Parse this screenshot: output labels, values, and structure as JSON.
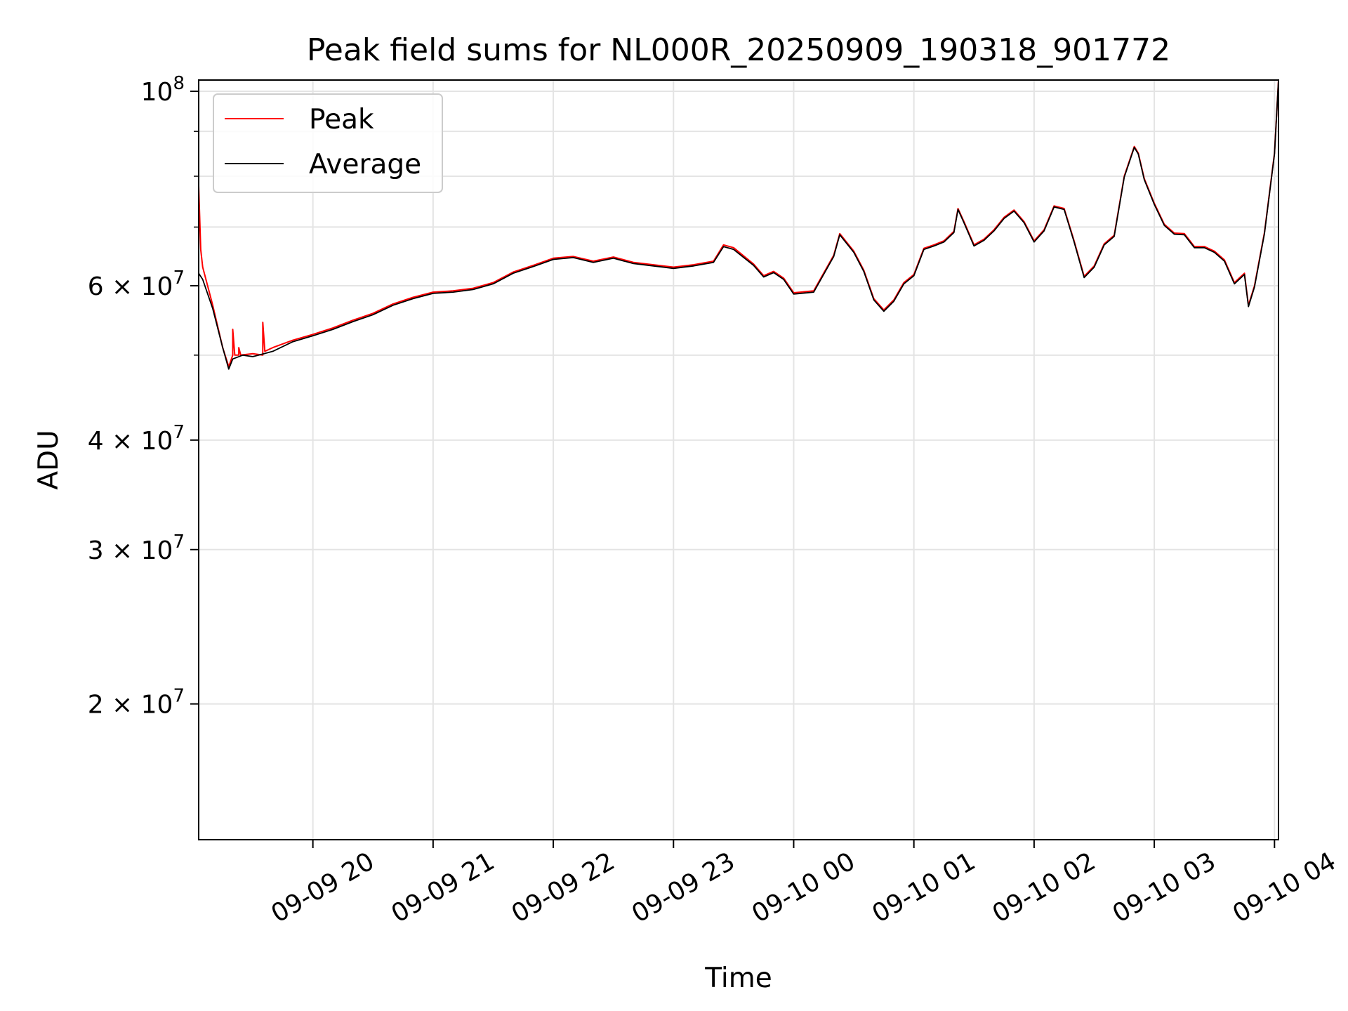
{
  "chart_data": {
    "type": "line",
    "title": "Peak field sums for NL000R_20250909_190318_901772",
    "xlabel": "Time",
    "ylabel": "ADU",
    "y_scale": "log",
    "ylim": [
      14000000,
      103000000
    ],
    "xlim": [
      "2025-09-09 19:03",
      "2025-09-10 04:02"
    ],
    "grid": true,
    "legend_position": "top-left",
    "x_ticks": [
      {
        "value": "2025-09-09 20:00",
        "label": "09-09 20"
      },
      {
        "value": "2025-09-09 21:00",
        "label": "09-09 21"
      },
      {
        "value": "2025-09-09 22:00",
        "label": "09-09 22"
      },
      {
        "value": "2025-09-09 23:00",
        "label": "09-09 23"
      },
      {
        "value": "2025-09-10 00:00",
        "label": "09-10 00"
      },
      {
        "value": "2025-09-10 01:00",
        "label": "09-10 01"
      },
      {
        "value": "2025-09-10 02:00",
        "label": "09-10 02"
      },
      {
        "value": "2025-09-10 03:00",
        "label": "09-10 03"
      },
      {
        "value": "2025-09-10 04:00",
        "label": "09-10 04"
      }
    ],
    "y_ticks": [
      {
        "value": 100000000,
        "base": "10",
        "exp": "8"
      },
      {
        "value": 60000000,
        "base": "6 × 10",
        "exp": "7"
      },
      {
        "value": 40000000,
        "base": "4 × 10",
        "exp": "7"
      },
      {
        "value": 30000000,
        "base": "3 × 10",
        "exp": "7"
      },
      {
        "value": 20000000,
        "base": "2 × 10",
        "exp": "7"
      }
    ],
    "y_minor_ticks": [
      50000000,
      70000000,
      80000000,
      90000000
    ],
    "series": [
      {
        "name": "Peak",
        "color": "#ff0000",
        "x": [
          "2025-09-09 19:03",
          "2025-09-09 19:03",
          "2025-09-09 19:04",
          "2025-09-09 19:05",
          "2025-09-09 19:10",
          "2025-09-09 19:15",
          "2025-09-09 19:18",
          "2025-09-09 19:20",
          "2025-09-09 19:20",
          "2025-09-09 19:21",
          "2025-09-09 19:23",
          "2025-09-09 19:23",
          "2025-09-09 19:24",
          "2025-09-09 19:30",
          "2025-09-09 19:35",
          "2025-09-09 19:35",
          "2025-09-09 19:36",
          "2025-09-09 19:40",
          "2025-09-09 19:45",
          "2025-09-09 19:50",
          "2025-09-09 20:00",
          "2025-09-09 20:10",
          "2025-09-09 20:20",
          "2025-09-09 20:30",
          "2025-09-09 20:40",
          "2025-09-09 20:50",
          "2025-09-09 21:00",
          "2025-09-09 21:10",
          "2025-09-09 21:20",
          "2025-09-09 21:30",
          "2025-09-09 21:40",
          "2025-09-09 21:50",
          "2025-09-09 22:00",
          "2025-09-09 22:10",
          "2025-09-09 22:20",
          "2025-09-09 22:30",
          "2025-09-09 22:40",
          "2025-09-09 22:50",
          "2025-09-09 23:00",
          "2025-09-09 23:10",
          "2025-09-09 23:20",
          "2025-09-09 23:25",
          "2025-09-09 23:30",
          "2025-09-09 23:40",
          "2025-09-09 23:45",
          "2025-09-09 23:50",
          "2025-09-09 23:55",
          "2025-09-10 00:00",
          "2025-09-10 00:10",
          "2025-09-10 00:20",
          "2025-09-10 00:23",
          "2025-09-10 00:30",
          "2025-09-10 00:35",
          "2025-09-10 00:40",
          "2025-09-10 00:45",
          "2025-09-10 00:50",
          "2025-09-10 00:55",
          "2025-09-10 01:00",
          "2025-09-10 01:05",
          "2025-09-10 01:10",
          "2025-09-10 01:15",
          "2025-09-10 01:20",
          "2025-09-10 01:22",
          "2025-09-10 01:25",
          "2025-09-10 01:30",
          "2025-09-10 01:35",
          "2025-09-10 01:40",
          "2025-09-10 01:45",
          "2025-09-10 01:50",
          "2025-09-10 01:55",
          "2025-09-10 02:00",
          "2025-09-10 02:05",
          "2025-09-10 02:10",
          "2025-09-10 02:15",
          "2025-09-10 02:20",
          "2025-09-10 02:25",
          "2025-09-10 02:30",
          "2025-09-10 02:35",
          "2025-09-10 02:40",
          "2025-09-10 02:45",
          "2025-09-10 02:50",
          "2025-09-10 02:52",
          "2025-09-10 02:55",
          "2025-09-10 03:00",
          "2025-09-10 03:05",
          "2025-09-10 03:10",
          "2025-09-10 03:15",
          "2025-09-10 03:20",
          "2025-09-10 03:25",
          "2025-09-10 03:30",
          "2025-09-10 03:35",
          "2025-09-10 03:40",
          "2025-09-10 03:45",
          "2025-09-10 03:47",
          "2025-09-10 03:50",
          "2025-09-10 03:55",
          "2025-09-10 04:00",
          "2025-09-10 04:02"
        ],
        "y": [
          64000000,
          78000000,
          66000000,
          63000000,
          57000000,
          51000000,
          48500000,
          50000000,
          53500000,
          50000000,
          50000000,
          51000000,
          50000000,
          50200000,
          50000000,
          54500000,
          50500000,
          51000000,
          51500000,
          52000000,
          52800000,
          53700000,
          54800000,
          55800000,
          57200000,
          58200000,
          59000000,
          59200000,
          59600000,
          60500000,
          62200000,
          63300000,
          64500000,
          64800000,
          64000000,
          64700000,
          63800000,
          63400000,
          63000000,
          63400000,
          64000000,
          66800000,
          66300000,
          63500000,
          61600000,
          62300000,
          61200000,
          58900000,
          59200000,
          65000000,
          68800000,
          65700000,
          62500000,
          58000000,
          56300000,
          57800000,
          60500000,
          61800000,
          66200000,
          66800000,
          67500000,
          69200000,
          73500000,
          71000000,
          66800000,
          67800000,
          69500000,
          71800000,
          73200000,
          71000000,
          67500000,
          69500000,
          74000000,
          73500000,
          67500000,
          61500000,
          63200000,
          67000000,
          68500000,
          80000000,
          86500000,
          85000000,
          79500000,
          74500000,
          70500000,
          68900000,
          68800000,
          66500000,
          66500000,
          65700000,
          64200000,
          60500000,
          62000000,
          57000000,
          60000000,
          69000000,
          85000000,
          103000000
        ]
      },
      {
        "name": "Average",
        "color": "#000000",
        "x": [
          "2025-09-09 19:03",
          "2025-09-09 19:05",
          "2025-09-09 19:10",
          "2025-09-09 19:15",
          "2025-09-09 19:18",
          "2025-09-09 19:20",
          "2025-09-09 19:25",
          "2025-09-09 19:30",
          "2025-09-09 19:40",
          "2025-09-09 19:50",
          "2025-09-09 20:00",
          "2025-09-09 20:10",
          "2025-09-09 20:20",
          "2025-09-09 20:30",
          "2025-09-09 20:40",
          "2025-09-09 20:50",
          "2025-09-09 21:00",
          "2025-09-09 21:10",
          "2025-09-09 21:20",
          "2025-09-09 21:30",
          "2025-09-09 21:40",
          "2025-09-09 21:50",
          "2025-09-09 22:00",
          "2025-09-09 22:10",
          "2025-09-09 22:20",
          "2025-09-09 22:30",
          "2025-09-09 22:40",
          "2025-09-09 22:50",
          "2025-09-09 23:00",
          "2025-09-09 23:10",
          "2025-09-09 23:20",
          "2025-09-09 23:25",
          "2025-09-09 23:30",
          "2025-09-09 23:40",
          "2025-09-09 23:45",
          "2025-09-09 23:50",
          "2025-09-09 23:55",
          "2025-09-10 00:00",
          "2025-09-10 00:10",
          "2025-09-10 00:20",
          "2025-09-10 00:23",
          "2025-09-10 00:30",
          "2025-09-10 00:35",
          "2025-09-10 00:40",
          "2025-09-10 00:45",
          "2025-09-10 00:50",
          "2025-09-10 00:55",
          "2025-09-10 01:00",
          "2025-09-10 01:05",
          "2025-09-10 01:10",
          "2025-09-10 01:15",
          "2025-09-10 01:20",
          "2025-09-10 01:22",
          "2025-09-10 01:25",
          "2025-09-10 01:30",
          "2025-09-10 01:35",
          "2025-09-10 01:40",
          "2025-09-10 01:45",
          "2025-09-10 01:50",
          "2025-09-10 01:55",
          "2025-09-10 02:00",
          "2025-09-10 02:05",
          "2025-09-10 02:10",
          "2025-09-10 02:15",
          "2025-09-10 02:20",
          "2025-09-10 02:25",
          "2025-09-10 02:30",
          "2025-09-10 02:35",
          "2025-09-10 02:40",
          "2025-09-10 02:45",
          "2025-09-10 02:50",
          "2025-09-10 02:52",
          "2025-09-10 02:55",
          "2025-09-10 03:00",
          "2025-09-10 03:05",
          "2025-09-10 03:10",
          "2025-09-10 03:15",
          "2025-09-10 03:20",
          "2025-09-10 03:25",
          "2025-09-10 03:30",
          "2025-09-10 03:35",
          "2025-09-10 03:40",
          "2025-09-10 03:45",
          "2025-09-10 03:47",
          "2025-09-10 03:50",
          "2025-09-10 03:55",
          "2025-09-10 04:00",
          "2025-09-10 04:02"
        ],
        "y": [
          62000000,
          61000000,
          56500000,
          51000000,
          48200000,
          49500000,
          50000000,
          49800000,
          50500000,
          51800000,
          52600000,
          53500000,
          54600000,
          55600000,
          57000000,
          58000000,
          58800000,
          59000000,
          59400000,
          60300000,
          62000000,
          63100000,
          64300000,
          64600000,
          63800000,
          64500000,
          63600000,
          63200000,
          62800000,
          63200000,
          63800000,
          66500000,
          66000000,
          63300000,
          61400000,
          62100000,
          61000000,
          58700000,
          59000000,
          64800000,
          68600000,
          65500000,
          62300000,
          57800000,
          56100000,
          57600000,
          60300000,
          61600000,
          66000000,
          66600000,
          67300000,
          69000000,
          73300000,
          70800000,
          66600000,
          67600000,
          69300000,
          71600000,
          73000000,
          70800000,
          67300000,
          69300000,
          73800000,
          73300000,
          67300000,
          61300000,
          63000000,
          66800000,
          68300000,
          79800000,
          86300000,
          84800000,
          79300000,
          74300000,
          70300000,
          68700000,
          68600000,
          66300000,
          66300000,
          65500000,
          64000000,
          60300000,
          61800000,
          56800000,
          59800000,
          68800000,
          84800000,
          103000000
        ]
      }
    ]
  }
}
